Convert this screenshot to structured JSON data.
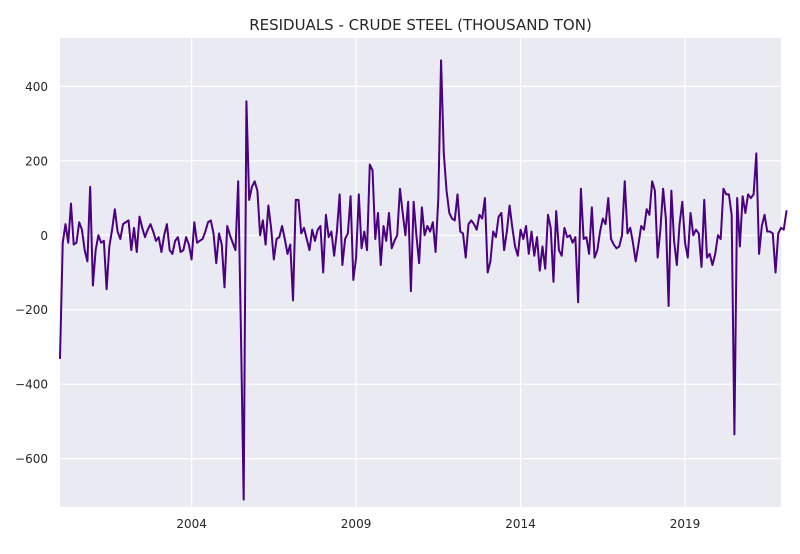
{
  "chart_data": {
    "type": "line",
    "title": "RESIDUALS - CRUDE STEEL (THOUSAND TON)",
    "xlabel": "",
    "ylabel": "",
    "xlim": [
      "2000-01",
      "2021-12"
    ],
    "ylim": [
      -730,
      530
    ],
    "x_ticks": [
      "2004",
      "2009",
      "2014",
      "2019"
    ],
    "y_ticks": [
      400,
      200,
      0,
      -200,
      -400,
      -600
    ],
    "y_tick_labels": [
      "400",
      "200",
      "0",
      "−200",
      "−400",
      "−600"
    ],
    "grid": true,
    "colors": {
      "background": "#eaeaf2",
      "grid": "#ffffff",
      "line": "#4b0082",
      "text": "#262626"
    },
    "series": [
      {
        "start": "2000-01",
        "frequency": "monthly",
        "values": [
          -330,
          -20,
          30,
          -20,
          85,
          -25,
          -20,
          35,
          15,
          -40,
          -70,
          130,
          -135,
          -40,
          0,
          -20,
          -15,
          -145,
          -30,
          15,
          70,
          10,
          -10,
          30,
          35,
          40,
          -40,
          20,
          -45,
          50,
          20,
          -5,
          15,
          30,
          10,
          -15,
          -5,
          -45,
          0,
          30,
          -40,
          -50,
          -15,
          -5,
          -45,
          -40,
          -5,
          -25,
          -65,
          35,
          -20,
          -15,
          -10,
          10,
          35,
          40,
          5,
          -75,
          5,
          -25,
          -140,
          25,
          0,
          -20,
          -40,
          145,
          -260,
          -710,
          360,
          95,
          130,
          145,
          120,
          0,
          40,
          -25,
          80,
          20,
          -65,
          -10,
          -5,
          25,
          -10,
          -50,
          -25,
          -175,
          95,
          95,
          5,
          20,
          -10,
          -40,
          15,
          -15,
          15,
          25,
          -100,
          55,
          -5,
          10,
          -55,
          10,
          110,
          -80,
          -10,
          5,
          105,
          -120,
          -60,
          110,
          -35,
          10,
          -40,
          190,
          175,
          -10,
          60,
          -80,
          25,
          -15,
          60,
          -35,
          -15,
          0,
          125,
          60,
          0,
          90,
          -150,
          90,
          0,
          -75,
          75,
          0,
          25,
          10,
          35,
          -45,
          100,
          470,
          220,
          120,
          60,
          45,
          40,
          110,
          10,
          5,
          -60,
          30,
          40,
          30,
          15,
          55,
          45,
          100,
          -100,
          -70,
          10,
          -5,
          50,
          60,
          -40,
          10,
          80,
          20,
          -30,
          -55,
          15,
          -10,
          25,
          -50,
          10,
          -55,
          -5,
          -95,
          -30,
          -90,
          55,
          20,
          -125,
          65,
          -40,
          -55,
          20,
          -5,
          0,
          -20,
          -5,
          -180,
          125,
          -10,
          -5,
          -50,
          75,
          -60,
          -40,
          10,
          45,
          30,
          100,
          -10,
          -25,
          -35,
          -30,
          0,
          145,
          5,
          20,
          -20,
          -70,
          -25,
          25,
          15,
          70,
          55,
          145,
          120,
          -60,
          15,
          125,
          45,
          -190,
          120,
          -15,
          -80,
          30,
          90,
          -20,
          -60,
          60,
          0,
          15,
          5,
          -85,
          95,
          -60,
          -50,
          -80,
          -50,
          0,
          -10,
          125,
          110,
          110,
          55,
          -535,
          100,
          -30,
          105,
          60,
          110,
          100,
          110,
          220,
          -50,
          25,
          55,
          10,
          10,
          5,
          -100,
          5,
          20,
          15,
          65
        ]
      }
    ]
  }
}
